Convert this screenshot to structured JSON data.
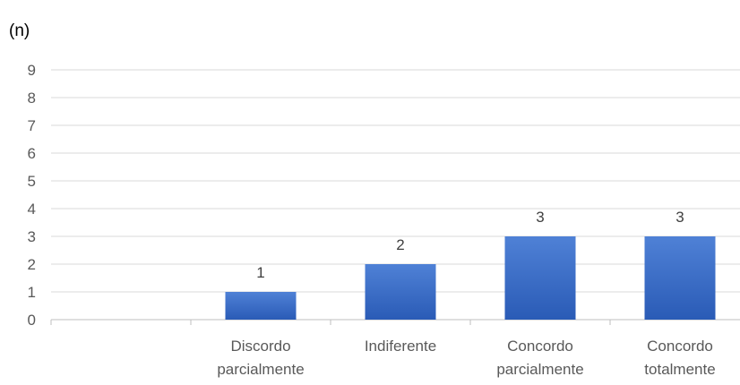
{
  "chart_data": {
    "type": "bar",
    "ylabel": "(n)",
    "xlabel": "",
    "title": "",
    "categories": [
      [
        "",
        ""
      ],
      [
        "Discordo",
        "parcialmente"
      ],
      [
        "Indiferente",
        ""
      ],
      [
        "Concordo",
        "parcialmente"
      ],
      [
        "Concordo",
        "totalmente"
      ]
    ],
    "values": [
      0,
      1,
      2,
      3,
      3
    ],
    "data_labels": [
      "",
      "1",
      "2",
      "3",
      "3"
    ],
    "ylim": [
      0,
      9
    ],
    "yticks": [
      "0",
      "1",
      "2",
      "3",
      "4",
      "5",
      "6",
      "7",
      "8",
      "9"
    ],
    "grid": true,
    "legend": "none",
    "colors": {
      "bar_top": "#4f81d6",
      "bar_bottom": "#2a5bb6",
      "grid": "#d9d9d9",
      "axis": "#bfbfbf"
    }
  }
}
